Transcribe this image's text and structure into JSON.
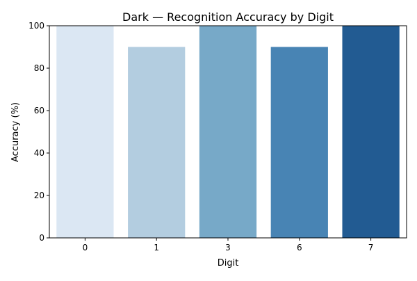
{
  "chart_data": {
    "type": "bar",
    "title": "Dark — Recognition Accuracy by Digit",
    "xlabel": "Digit",
    "ylabel": "Accuracy (%)",
    "categories": [
      "0",
      "1",
      "3",
      "6",
      "7"
    ],
    "values": [
      100,
      90,
      100,
      90,
      100
    ],
    "ylim": [
      0,
      100
    ],
    "yticks": [
      0,
      20,
      40,
      60,
      80,
      100
    ],
    "grid": false,
    "legend": "none",
    "colors": [
      "#dbe7f3",
      "#b3cde0",
      "#77a9c8",
      "#4884b4",
      "#225b92"
    ]
  }
}
